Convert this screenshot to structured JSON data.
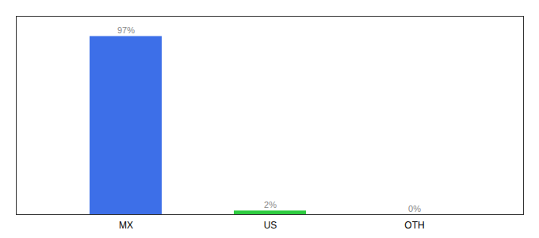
{
  "chart_data": {
    "type": "bar",
    "categories": [
      "MX",
      "US",
      "OTH"
    ],
    "values": [
      97,
      2,
      0
    ],
    "value_labels": [
      "97%",
      "2%",
      "0%"
    ],
    "colors": [
      "#3d6fe8",
      "#2ecc40",
      "#3d6fe8"
    ],
    "ylim": [
      0,
      108
    ],
    "yticks": [],
    "tick_labels": "x",
    "data_labels": true,
    "grid": false
  }
}
